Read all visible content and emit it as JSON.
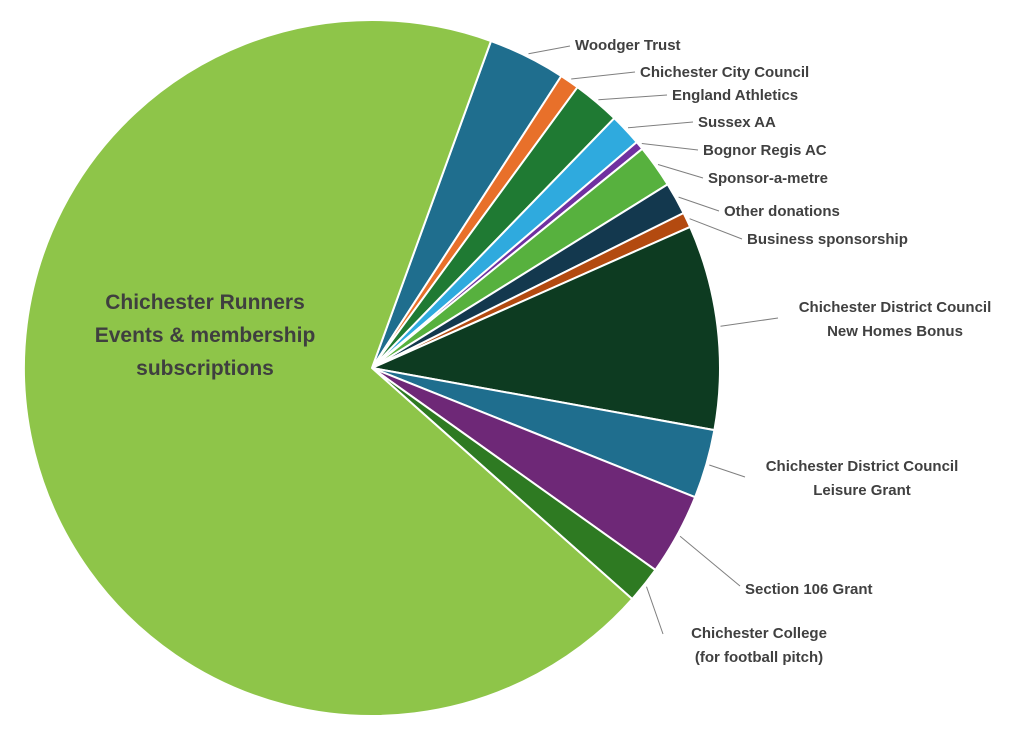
{
  "chart_data": {
    "type": "pie",
    "direction": "clockwise",
    "start_angle_deg_from_top": 20,
    "values_unit": "percent (estimated from slice angles; no numeric labels shown)",
    "labels": [
      "Woodger Trust",
      "Chichester City Council",
      "England Athletics",
      "Sussex AA",
      "Bognor Regis AC",
      "Sponsor-a-metre",
      "Other donations",
      "Business sponsorship",
      "Chichester District Council New Homes Bonus",
      "Chichester District Council Leisure Grant",
      "Section 106 Grant",
      "Chichester College (for football pitch)",
      "Chichester Runners Events & membership subscriptions"
    ],
    "values": [
      3.6,
      0.9,
      2.2,
      1.5,
      0.4,
      2.0,
      1.5,
      0.7,
      9.5,
      3.2,
      3.8,
      1.7,
      69.0
    ],
    "colors": [
      "#1F6E8E",
      "#E8702A",
      "#1F7A33",
      "#2FAADE",
      "#7030A0",
      "#57B13E",
      "#13384E",
      "#B34A10",
      "#0D3B21",
      "#1F6E8E",
      "#6E2877",
      "#2E7A22",
      "#8EC549"
    ],
    "label_lines": [
      [
        "Woodger Trust"
      ],
      [
        "Chichester City Council"
      ],
      [
        "England Athletics"
      ],
      [
        "Sussex AA"
      ],
      [
        "Bognor Regis AC"
      ],
      [
        "Sponsor-a-metre"
      ],
      [
        "Other donations"
      ],
      [
        "Business sponsorship"
      ],
      [
        "Chichester District Council",
        "New Homes Bonus"
      ],
      [
        "Chichester District Council",
        "Leisure Grant"
      ],
      [
        "Section 106 Grant"
      ],
      [
        "Chichester College",
        "(for football pitch)"
      ]
    ],
    "center_label_lines": [
      "Chichester Runners",
      "Events & membership",
      "subscriptions"
    ],
    "text_color": "#404040",
    "leader_line_color": "#7F7F7F",
    "background": "#FFFFFF",
    "legend_position": "none",
    "grid": false
  }
}
